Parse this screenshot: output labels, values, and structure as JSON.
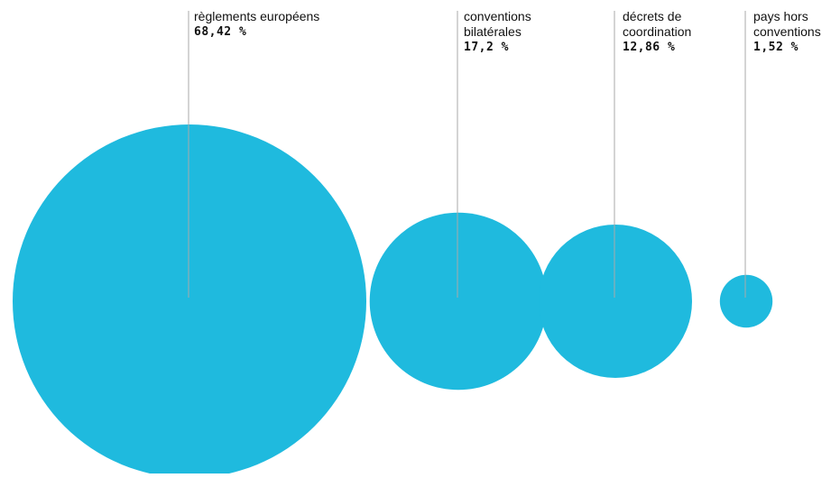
{
  "chart_data": {
    "type": "bubble",
    "color": "#1fbade",
    "leader_color": "#aaaaaa",
    "categories": [
      "règlements européens",
      "conventions\nbilatérales",
      "décrets de\ncoordination",
      "pays hors\nconventions"
    ],
    "values": [
      68.42,
      17.2,
      12.86,
      1.52
    ],
    "value_labels": [
      "68,42 %",
      "17,2 %",
      "12,86 %",
      "1,52 %"
    ],
    "title": "",
    "xlabel": "",
    "ylabel": ""
  }
}
